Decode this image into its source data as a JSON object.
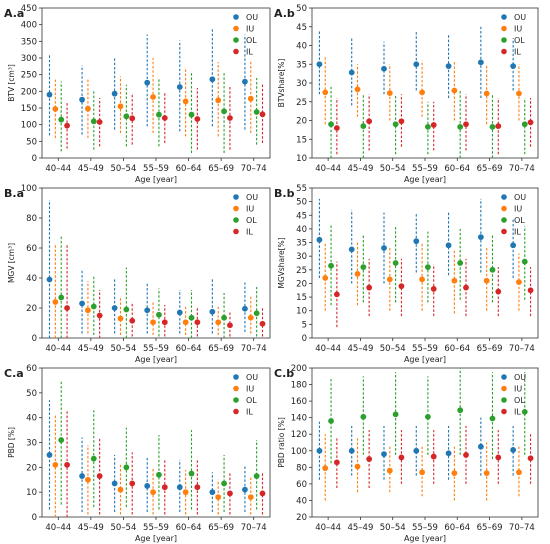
{
  "figure": {
    "age_groups": [
      "40–44",
      "45–49",
      "50–54",
      "55–59",
      "60–64",
      "65–69",
      "70–74"
    ],
    "groups": [
      "OU",
      "IU",
      "OL",
      "IL"
    ],
    "colors": {
      "OU": "#1f77b4",
      "IU": "#ff7f0e",
      "OL": "#2ca02c",
      "IL": "#d62728"
    }
  },
  "chart_data": [
    {
      "id": "Aa",
      "type": "scatter",
      "title": "A.a",
      "xlabel": "Age [year]",
      "ylabel": "BTV [cm³]",
      "ylim": [
        0,
        450
      ],
      "yticks": [
        0,
        50,
        100,
        150,
        200,
        250,
        300,
        350,
        400,
        450
      ],
      "legend": [
        "OU",
        "IU",
        "OL",
        "IL"
      ],
      "legend_position": "top-right",
      "categories": [
        "40–44",
        "45–49",
        "50–54",
        "55–59",
        "60–64",
        "65–69",
        "70–74"
      ],
      "series": [
        {
          "name": "OU",
          "values": [
            190,
            175,
            193,
            226,
            213,
            236,
            229
          ],
          "lo": [
            68,
            70,
            85,
            95,
            80,
            95,
            85
          ],
          "hi": [
            308,
            278,
            302,
            370,
            352,
            390,
            370
          ]
        },
        {
          "name": "IU",
          "values": [
            147,
            148,
            155,
            183,
            170,
            173,
            178
          ],
          "lo": [
            60,
            60,
            75,
            75,
            65,
            65,
            75
          ],
          "hi": [
            240,
            238,
            245,
            300,
            272,
            288,
            290
          ]
        },
        {
          "name": "OL",
          "values": [
            115,
            110,
            125,
            130,
            130,
            140,
            138
          ],
          "lo": [
            20,
            25,
            35,
            35,
            15,
            15,
            40
          ],
          "hi": [
            230,
            200,
            220,
            240,
            260,
            260,
            240
          ]
        },
        {
          "name": "IL",
          "values": [
            97,
            108,
            119,
            120,
            117,
            120,
            131
          ],
          "lo": [
            28,
            35,
            40,
            45,
            25,
            25,
            45
          ],
          "hi": [
            170,
            180,
            195,
            200,
            210,
            215,
            220
          ]
        }
      ]
    },
    {
      "id": "Ab",
      "type": "scatter",
      "title": "A.b",
      "xlabel": "Age [year]",
      "ylabel": "BTVshare[%]",
      "ylim": [
        10,
        50
      ],
      "yticks": [
        10,
        15,
        20,
        25,
        30,
        35,
        40,
        45,
        50
      ],
      "legend": [
        "OU",
        "IU",
        "OL",
        "IL"
      ],
      "legend_position": "top-right",
      "categories": [
        "40–44",
        "45–49",
        "50–54",
        "55–59",
        "60–64",
        "65–69",
        "70–74"
      ],
      "series": [
        {
          "name": "OU",
          "values": [
            35,
            32.8,
            33.8,
            35,
            34.5,
            35.5,
            34.5
          ],
          "lo": [
            27,
            24,
            27,
            28,
            26,
            26,
            28
          ],
          "hi": [
            44,
            42,
            41,
            44,
            43,
            45,
            42
          ]
        },
        {
          "name": "IU",
          "values": [
            27.5,
            28.3,
            27.3,
            27.5,
            28,
            27.2,
            27.2
          ],
          "lo": [
            19,
            21,
            20,
            21,
            20,
            19,
            20
          ],
          "hi": [
            37,
            35,
            35,
            36,
            36,
            35,
            35
          ]
        },
        {
          "name": "OL",
          "values": [
            19,
            18.5,
            19,
            18.3,
            18.3,
            18.3,
            19
          ],
          "lo": [
            10,
            10,
            11,
            11,
            10,
            10,
            11
          ],
          "hi": [
            29,
            27,
            27,
            25,
            28,
            27,
            26
          ]
        },
        {
          "name": "IL",
          "values": [
            18,
            19.8,
            19.8,
            18.8,
            19,
            18.5,
            19.5
          ],
          "lo": [
            11,
            12,
            13,
            12,
            12,
            11,
            13
          ],
          "hi": [
            26,
            27,
            27,
            25,
            27,
            26,
            26
          ]
        }
      ]
    },
    {
      "id": "Ba",
      "type": "scatter",
      "title": "B.a",
      "xlabel": "Age [year]",
      "ylabel": "MGV [cm³]",
      "ylim": [
        0,
        100
      ],
      "yticks": [
        0,
        20,
        40,
        60,
        80,
        100
      ],
      "legend": [
        "OU",
        "IU",
        "OL",
        "IL"
      ],
      "legend_position": "top-right",
      "categories": [
        "40–44",
        "45–49",
        "50–54",
        "55–59",
        "60–64",
        "65–69",
        "70–74"
      ],
      "series": [
        {
          "name": "OU",
          "values": [
            39,
            23,
            20,
            18.5,
            17,
            17.5,
            19.5
          ],
          "lo": [
            0,
            3,
            3,
            3,
            3,
            3,
            4
          ],
          "hi": [
            92,
            46,
            40,
            37,
            32,
            40,
            37
          ]
        },
        {
          "name": "IU",
          "values": [
            24,
            18.5,
            13,
            10.5,
            10.5,
            10.5,
            13.5
          ],
          "lo": [
            0,
            3,
            2,
            2,
            2,
            2,
            3
          ],
          "hi": [
            63,
            38,
            27,
            24,
            22,
            22,
            28
          ]
        },
        {
          "name": "OL",
          "values": [
            27,
            21,
            19,
            15.5,
            13.5,
            13.5,
            16.5
          ],
          "lo": [
            0,
            2,
            0,
            1,
            0,
            0,
            1
          ],
          "hi": [
            68,
            42,
            47,
            33,
            32,
            30,
            34
          ]
        },
        {
          "name": "IL",
          "values": [
            20,
            15,
            11.5,
            10.5,
            10.5,
            8.5,
            9.5
          ],
          "lo": [
            0,
            0,
            1,
            1,
            1,
            1,
            1
          ],
          "hi": [
            63,
            32,
            24,
            22,
            21,
            17,
            20
          ]
        }
      ]
    },
    {
      "id": "Bb",
      "type": "scatter",
      "title": "B.b",
      "xlabel": "Age [year]",
      "ylabel": "MGVshare[%]",
      "ylim": [
        0,
        55
      ],
      "yticks": [
        0,
        5,
        10,
        15,
        20,
        25,
        30,
        35,
        40,
        45,
        50,
        55
      ],
      "legend": [
        "OU",
        "IU",
        "OL",
        "IL"
      ],
      "legend_position": "top-right",
      "categories": [
        "40–44",
        "45–49",
        "50–54",
        "55–59",
        "60–64",
        "65–69",
        "70–74"
      ],
      "series": [
        {
          "name": "OU",
          "values": [
            36,
            32.5,
            33,
            35.5,
            34,
            37,
            34
          ],
          "lo": [
            22,
            20,
            20,
            24,
            23,
            24,
            22
          ],
          "hi": [
            51,
            47,
            46,
            46,
            46,
            51,
            44
          ]
        },
        {
          "name": "IU",
          "values": [
            22,
            23.5,
            21.5,
            21.5,
            21,
            21,
            20.5
          ],
          "lo": [
            10,
            12,
            10,
            10,
            9,
            10,
            10
          ],
          "hi": [
            35,
            35,
            33,
            35,
            32,
            33,
            31
          ]
        },
        {
          "name": "OL",
          "values": [
            26.5,
            26,
            27.5,
            26,
            27.5,
            25,
            28
          ],
          "lo": [
            12,
            13,
            13,
            13,
            14,
            13,
            14
          ],
          "hi": [
            42,
            38,
            41,
            39,
            40,
            38,
            41
          ]
        },
        {
          "name": "IL",
          "values": [
            16,
            18.5,
            19,
            18,
            18.5,
            17,
            17.5
          ],
          "lo": [
            4,
            8,
            8,
            8,
            8,
            8,
            8
          ],
          "hi": [
            28,
            29,
            29,
            27,
            29,
            26,
            26
          ]
        }
      ]
    },
    {
      "id": "Ca",
      "type": "scatter",
      "title": "C.a",
      "xlabel": "Age [year]",
      "ylabel": "PBD [%]",
      "ylim": [
        0,
        60
      ],
      "yticks": [
        0,
        10,
        20,
        30,
        40,
        50,
        60
      ],
      "legend": [
        "OU",
        "IU",
        "OL",
        "IL"
      ],
      "legend_position": "top-right",
      "categories": [
        "40–44",
        "45–49",
        "50–54",
        "55–59",
        "60–64",
        "65–69",
        "70–74"
      ],
      "series": [
        {
          "name": "OU",
          "values": [
            25,
            16.5,
            13.5,
            12.5,
            12,
            10,
            11
          ],
          "lo": [
            3,
            2,
            2,
            2,
            2,
            2,
            2
          ],
          "hi": [
            47,
            32,
            25,
            24,
            23,
            18,
            21
          ]
        },
        {
          "name": "IU",
          "values": [
            21,
            15,
            11,
            10,
            10,
            8,
            8
          ],
          "lo": [
            0,
            1,
            1,
            1,
            1,
            1,
            1
          ],
          "hi": [
            41,
            29,
            21,
            20,
            19,
            15,
            16
          ]
        },
        {
          "name": "OL",
          "values": [
            31,
            23.5,
            20,
            17,
            17.5,
            13.5,
            16.5
          ],
          "lo": [
            5,
            4,
            4,
            3,
            3,
            2,
            3
          ],
          "hi": [
            55,
            43,
            36,
            33,
            35,
            25,
            31
          ]
        },
        {
          "name": "IL",
          "values": [
            21,
            16.5,
            13.5,
            12,
            12,
            9.5,
            9.5
          ],
          "lo": [
            0,
            1,
            1,
            1,
            1,
            1,
            1
          ],
          "hi": [
            43,
            32,
            26,
            23,
            23,
            18,
            18
          ]
        }
      ]
    },
    {
      "id": "Cb",
      "type": "scatter",
      "title": "C.b",
      "xlabel": "Age [year]",
      "ylabel": "PBD ratio [%]",
      "ylim": [
        20,
        200
      ],
      "yticks": [
        20,
        40,
        60,
        80,
        100,
        120,
        140,
        160,
        180,
        200
      ],
      "legend": [
        "OU",
        "IU",
        "OL",
        "IL"
      ],
      "legend_position": "top-right",
      "categories": [
        "40–44",
        "45–49",
        "50–54",
        "55–59",
        "60–64",
        "65–69",
        "70–74"
      ],
      "series": [
        {
          "name": "OU",
          "values": [
            100,
            100,
            96,
            100,
            97,
            105,
            101
          ],
          "lo": [
            65,
            70,
            65,
            70,
            65,
            70,
            70
          ],
          "hi": [
            135,
            130,
            130,
            130,
            130,
            140,
            130
          ]
        },
        {
          "name": "IU",
          "values": [
            79,
            81,
            76,
            74,
            73,
            73,
            74
          ],
          "lo": [
            40,
            50,
            50,
            45,
            40,
            40,
            45
          ],
          "hi": [
            120,
            115,
            105,
            105,
            105,
            110,
            105
          ]
        },
        {
          "name": "OL",
          "values": [
            136,
            141,
            144,
            141,
            149,
            139,
            147
          ],
          "lo": [
            85,
            95,
            95,
            95,
            95,
            90,
            95
          ],
          "hi": [
            188,
            190,
            195,
            190,
            200,
            195,
            195
          ]
        },
        {
          "name": "IL",
          "values": [
            86,
            90,
            92,
            93,
            95,
            92,
            91
          ],
          "lo": [
            55,
            55,
            60,
            60,
            60,
            60,
            60
          ],
          "hi": [
            115,
            125,
            125,
            125,
            130,
            125,
            120
          ]
        }
      ]
    }
  ]
}
